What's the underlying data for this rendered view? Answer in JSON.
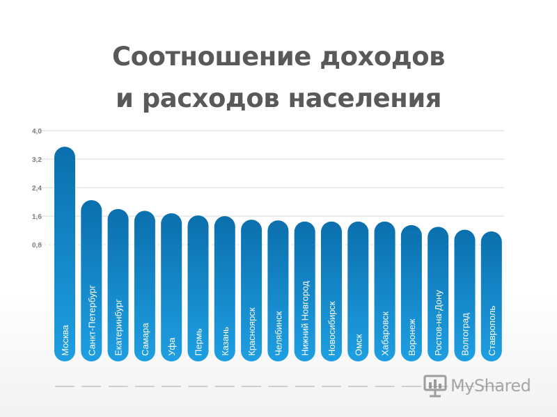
{
  "title_line1": "Соотношение доходов",
  "title_line2": "и расходов населения",
  "watermark": "MyShared",
  "chart_data": {
    "type": "bar",
    "title": "Соотношение доходов и расходов населения",
    "xlabel": "",
    "ylabel": "",
    "ylim": [
      0,
      4.0
    ],
    "yticks": [
      "4,0",
      "3,2",
      "2,4",
      "1,6",
      "0,8"
    ],
    "ytick_values": [
      4.0,
      3.2,
      2.4,
      1.6,
      0.8
    ],
    "grid": true,
    "categories": [
      "Москва",
      "Санкт-Петербург",
      "Екатеринбург",
      "Самара",
      "Уфа",
      "Пермь",
      "Казань",
      "Красноярск",
      "Челябинск",
      "Нижний Новгород",
      "Новосибирск",
      "Омск",
      "Хабаровск",
      "Воронеж",
      "Ростов-на-Дону",
      "Волгоград",
      "Ставрополь"
    ],
    "values": [
      3.55,
      2.05,
      1.8,
      1.75,
      1.68,
      1.62,
      1.6,
      1.5,
      1.48,
      1.45,
      1.45,
      1.45,
      1.45,
      1.35,
      1.3,
      1.22,
      1.17
    ],
    "colors": {
      "bar_top": "#0b6fad",
      "bar_bottom": "#1e9fe2",
      "grid": "#d9d9d9",
      "tick": "#7f7f7f",
      "bar_label": "#ffffff"
    }
  }
}
